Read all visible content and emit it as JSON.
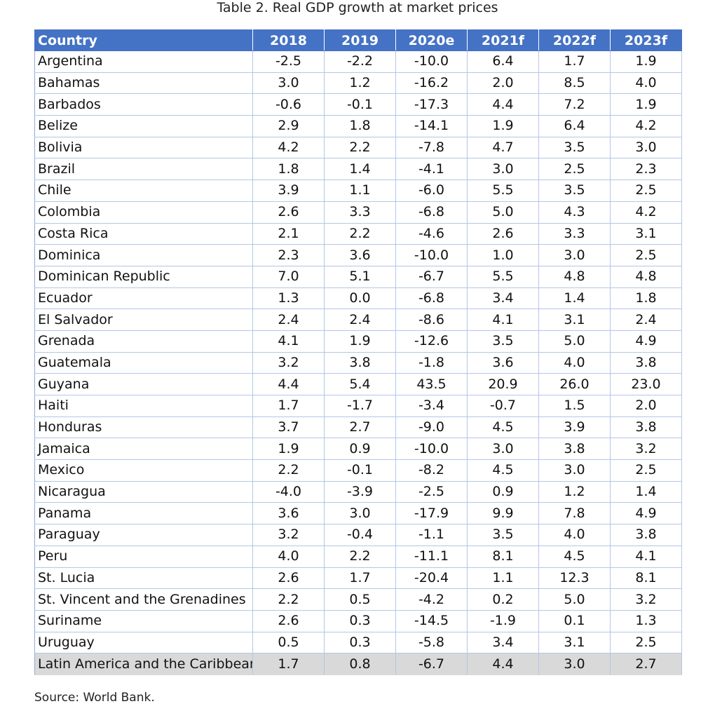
{
  "title": "Table 2. Real GDP growth at market prices",
  "table": {
    "headers": [
      "Country",
      "2018",
      "2019",
      "2020e",
      "2021f",
      "2022f",
      "2023f"
    ],
    "rows": [
      [
        "Argentina",
        "-2.5",
        "-2.2",
        "-10.0",
        "6.4",
        "1.7",
        "1.9"
      ],
      [
        "Bahamas",
        "3.0",
        "1.2",
        "-16.2",
        "2.0",
        "8.5",
        "4.0"
      ],
      [
        "Barbados",
        "-0.6",
        "-0.1",
        "-17.3",
        "4.4",
        "7.2",
        "1.9"
      ],
      [
        "Belize",
        "2.9",
        "1.8",
        "-14.1",
        "1.9",
        "6.4",
        "4.2"
      ],
      [
        "Bolivia",
        "4.2",
        "2.2",
        "-7.8",
        "4.7",
        "3.5",
        "3.0"
      ],
      [
        "Brazil",
        "1.8",
        "1.4",
        "-4.1",
        "3.0",
        "2.5",
        "2.3"
      ],
      [
        "Chile",
        "3.9",
        "1.1",
        "-6.0",
        "5.5",
        "3.5",
        "2.5"
      ],
      [
        "Colombia",
        "2.6",
        "3.3",
        "-6.8",
        "5.0",
        "4.3",
        "4.2"
      ],
      [
        "Costa Rica",
        "2.1",
        "2.2",
        "-4.6",
        "2.6",
        "3.3",
        "3.1"
      ],
      [
        "Dominica",
        "2.3",
        "3.6",
        "-10.0",
        "1.0",
        "3.0",
        "2.5"
      ],
      [
        "Dominican Republic",
        "7.0",
        "5.1",
        "-6.7",
        "5.5",
        "4.8",
        "4.8"
      ],
      [
        "Ecuador",
        "1.3",
        "0.0",
        "-6.8",
        "3.4",
        "1.4",
        "1.8"
      ],
      [
        "El Salvador",
        "2.4",
        "2.4",
        "-8.6",
        "4.1",
        "3.1",
        "2.4"
      ],
      [
        "Grenada",
        "4.1",
        "1.9",
        "-12.6",
        "3.5",
        "5.0",
        "4.9"
      ],
      [
        "Guatemala",
        "3.2",
        "3.8",
        "-1.8",
        "3.6",
        "4.0",
        "3.8"
      ],
      [
        "Guyana",
        "4.4",
        "5.4",
        "43.5",
        "20.9",
        "26.0",
        "23.0"
      ],
      [
        "Haiti",
        "1.7",
        "-1.7",
        "-3.4",
        "-0.7",
        "1.5",
        "2.0"
      ],
      [
        "Honduras",
        "3.7",
        "2.7",
        "-9.0",
        "4.5",
        "3.9",
        "3.8"
      ],
      [
        "Jamaica",
        "1.9",
        "0.9",
        "-10.0",
        "3.0",
        "3.8",
        "3.2"
      ],
      [
        "Mexico",
        "2.2",
        "-0.1",
        "-8.2",
        "4.5",
        "3.0",
        "2.5"
      ],
      [
        "Nicaragua",
        "-4.0",
        "-3.9",
        "-2.5",
        "0.9",
        "1.2",
        "1.4"
      ],
      [
        "Panama",
        "3.6",
        "3.0",
        "-17.9",
        "9.9",
        "7.8",
        "4.9"
      ],
      [
        "Paraguay",
        "3.2",
        "-0.4",
        "-1.1",
        "3.5",
        "4.0",
        "3.8"
      ],
      [
        "Peru",
        "4.0",
        "2.2",
        "-11.1",
        "8.1",
        "4.5",
        "4.1"
      ],
      [
        "St. Lucia",
        "2.6",
        "1.7",
        "-20.4",
        "1.1",
        "12.3",
        "8.1"
      ],
      [
        "St. Vincent and the Grenadines",
        "2.2",
        "0.5",
        "-4.2",
        "0.2",
        "5.0",
        "3.2"
      ],
      [
        "Suriname",
        "2.6",
        "0.3",
        "-14.5",
        "-1.9",
        "0.1",
        "1.3"
      ],
      [
        "Uruguay",
        "0.5",
        "0.3",
        "-5.8",
        "3.4",
        "3.1",
        "2.5"
      ]
    ],
    "total_row": [
      "Latin America and the Caribbean",
      "1.7",
      "0.8",
      "-6.7",
      "4.4",
      "3.0",
      "2.7"
    ]
  },
  "source": "Source: World Bank.",
  "colors": {
    "header_bg": "#4472c4",
    "grid": "#b4c6e7",
    "total_bg": "#d9d9d9"
  }
}
